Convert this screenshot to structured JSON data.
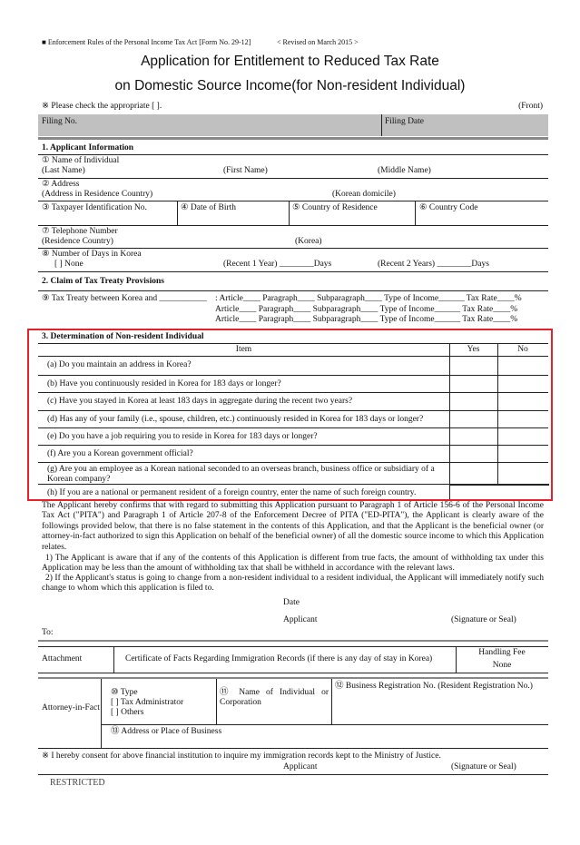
{
  "header": {
    "form_ref": "■ Enforcement Rules of the Personal Income Tax Act [Form No. 29-12]",
    "revised": "< Revised on March 2015 >",
    "title_line1": "Application for Entitlement to Reduced Tax Rate",
    "title_line2": "on Domestic Source Income(for Non-resident Individual)",
    "check_note": "※ Please check the appropriate [   ].",
    "front": "(Front)",
    "filing_no": "Filing No.",
    "filing_date": "Filing Date"
  },
  "section1": {
    "title": "1. Applicant Information",
    "name_label": "① Name of Individual",
    "last_name": "(Last Name)",
    "first_name": "(First Name)",
    "middle_name": "(Middle Name)",
    "address_label": "② Address",
    "address_residence": "(Address in Residence Country)",
    "korean_domicile": "(Korean domicile)",
    "tin": "③ Taxpayer Identification No.",
    "dob": "④ Date of Birth",
    "country_residence": "⑤ Country of Residence",
    "country_code": "⑥ Country Code",
    "phone_label": "⑦ Telephone Number",
    "phone_residence": "(Residence Country)",
    "phone_korea": "(Korea)",
    "days_label": "⑧ Number of Days in Korea",
    "none": "[      ] None",
    "recent1": "(Recent 1 Year) ________Days",
    "recent2": "(Recent 2 Years) ________Days"
  },
  "section2": {
    "title": "2. Claim of Tax Treaty Provisions",
    "treaty": "⑨ Tax Treaty between Korea and ___________",
    "rows": [
      ": Article____  Paragraph____  Subparagraph____  Type of Income______  Tax Rate____%",
      "  Article____  Paragraph____  Subparagraph____  Type of Income______  Tax Rate____%",
      "  Article____  Paragraph____  Subparagraph____  Type of Income______  Tax Rate____%"
    ]
  },
  "section3": {
    "title": "3. Determination of Non-resident Individual",
    "col_item": "Item",
    "col_yes": "Yes",
    "col_no": "No",
    "highlight_color": "#e8202a",
    "questions": [
      "(a) Do you maintain an address in Korea?",
      "(b) Have you continuously resided in Korea for 183 days or longer?",
      "(c) Have you stayed in Korea at least 183 days in aggregate during the recent two years?",
      "(d) Has any of your family (i.e., spouse, children, etc.) continuously resided in Korea for 183 days or longer?",
      "(e) Do you have a job requiring you to reside in Korea for 183 days or longer?",
      "(f) Are you a Korean government official?",
      "(g) Are you an employee as a Korean national seconded to an overseas branch, business office or subsidiary of a Korean company?",
      "(h) If you are a national or permanent resident of a foreign country, enter the name of such foreign country."
    ]
  },
  "declaration": {
    "main": "The Applicant hereby confirms that with regard to submitting this Application pursuant to Paragraph 1 of Article 156-6 of the Personal Income Tax Act (\"PITA\") and Paragraph 1 of Article 207-8 of the Enforcement Decree of PITA (\"ED-PITA\"), the Applicant is clearly aware of the followings provided below, that there is no false statement in the contents of this Application, and that the Applicant is the beneficial owner (or attorney-in-fact authorized to sign this Application on behalf of the beneficial owner) of all the domestic source income to which this Application relates.",
    "item1": "1) The Applicant is aware that if any of the contents of this Application is different from true facts, the amount of withholding tax under this Application may be less than the amount of withholding tax that shall be withheld in accordance with the relevant laws.",
    "item2": "2) If the Applicant's status is going to change from a non-resident individual to a resident individual, the Applicant will immediately notify such change to whom which this application is filed to.",
    "date": "Date",
    "applicant": "Applicant",
    "signature": "(Signature or Seal)",
    "to": "To:"
  },
  "attachment": {
    "label": "Attachment",
    "text": "Certificate of Facts Regarding Immigration Records (if there is any day of stay in Korea)",
    "fee_label": "Handling Fee",
    "fee_value": "None"
  },
  "attorney": {
    "label": "Attorney-in-Fact",
    "type": "⑩ Type",
    "tax_admin": "[   ] Tax Administrator",
    "others": "[   ] Others",
    "name": "⑪ Name of Individual or Corporation",
    "brn": "⑫ Business Registration No. (Resident Registration No.)",
    "address": "⑬ Address or Place of Business"
  },
  "consent": {
    "text": "※ I hereby consent for above financial institution to inquire my immigration records kept to the Ministry of Justice.",
    "applicant": "Applicant",
    "signature": "(Signature or Seal)"
  },
  "footer": {
    "restricted": "RESTRICTED"
  }
}
